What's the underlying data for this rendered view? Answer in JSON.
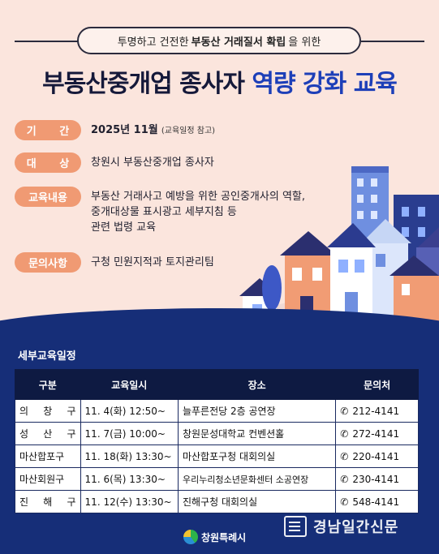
{
  "subtitle": {
    "before": "투명하고 건전한",
    "bold": "부동산 거래질서 확립",
    "after": "을 위한"
  },
  "title": {
    "main": "부동산중개업 종사자",
    "accent": "역량 강화 교육"
  },
  "info": {
    "period_label": "기 간",
    "period_value": "2025년 11월",
    "period_note": "(교육일정 참고)",
    "target_label": "대 상",
    "target_value": "창원시 부동산중개업 종사자",
    "content_label": "교육내용",
    "content_lines": [
      "부동산 거래사고 예방을 위한 공인중개사의 역할,",
      "중개대상물 표시광고 세부지침 등",
      "관련 법령 교육"
    ],
    "contact_label": "문의사항",
    "contact_value": "구청 민원지적과 토지관리팀"
  },
  "schedule": {
    "title": "세부교육일정",
    "headers": [
      "구분",
      "교육일시",
      "장소",
      "문의처"
    ],
    "rows": [
      {
        "district": "의 창 구",
        "datetime": "11. 4(화) 12:50~",
        "place": "늘푸른전당 2층 공연장",
        "phone": "212-4141"
      },
      {
        "district": "성 산 구",
        "datetime": "11. 7(금) 10:00~",
        "place": "창원문성대학교 컨벤션홀",
        "phone": "272-4141"
      },
      {
        "district": "마산합포구",
        "datetime": "11. 18(화) 13:30~",
        "place": "마산합포구청 대회의실",
        "phone": "220-4141"
      },
      {
        "district": "마산회원구",
        "datetime": "11. 6(목) 13:30~",
        "place": "우리누리청소년문화센터 소공연장",
        "phone": "230-4141"
      },
      {
        "district": "진 해 구",
        "datetime": "11. 12(수) 13:30~",
        "place": "진해구청 대회의실",
        "phone": "548-4141"
      }
    ]
  },
  "footer": {
    "logo_text": "창원특례시",
    "watermark": "경남일간신문"
  },
  "icons": {
    "phone": "phone-icon"
  },
  "colors": {
    "background": "#fbe5dd",
    "label_orange": "#f09a73",
    "navy": "#162e78",
    "accent_blue": "#1d3fb8"
  }
}
